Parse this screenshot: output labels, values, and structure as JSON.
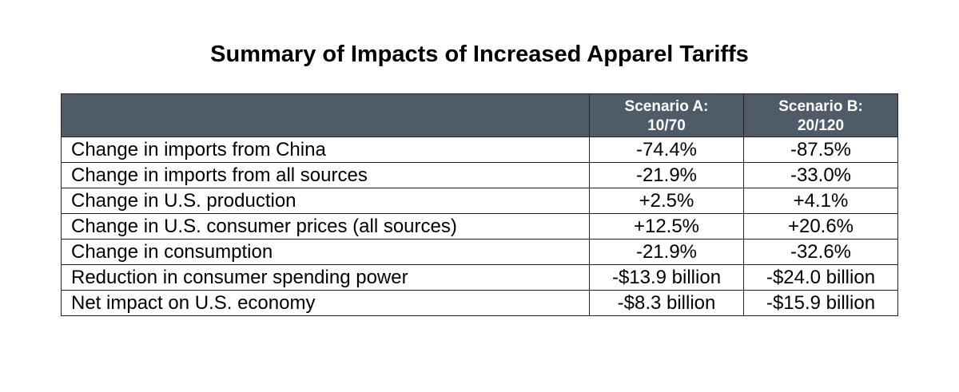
{
  "title": "Summary of Impacts of Increased Apparel Tariffs",
  "table": {
    "columns": [
      [
        "Scenario A:",
        "10/70"
      ],
      [
        "Scenario B:",
        "20/120"
      ]
    ],
    "rows": [
      [
        "Change in imports from China",
        "-74.4%",
        "-87.5%"
      ],
      [
        "Change in imports from all sources",
        "-21.9%",
        "-33.0%"
      ],
      [
        "Change in U.S. production",
        "+2.5%",
        "+4.1%"
      ],
      [
        "Change in U.S. consumer prices (all sources)",
        "+12.5%",
        "+20.6%"
      ],
      [
        "Change in consumption",
        "-21.9%",
        "-32.6%"
      ],
      [
        "Reduction in consumer spending power",
        "-$13.9 billion",
        "-$24.0 billion"
      ],
      [
        "Net impact on U.S. economy",
        "-$8.3 billion",
        "-$15.9 billion"
      ]
    ]
  }
}
